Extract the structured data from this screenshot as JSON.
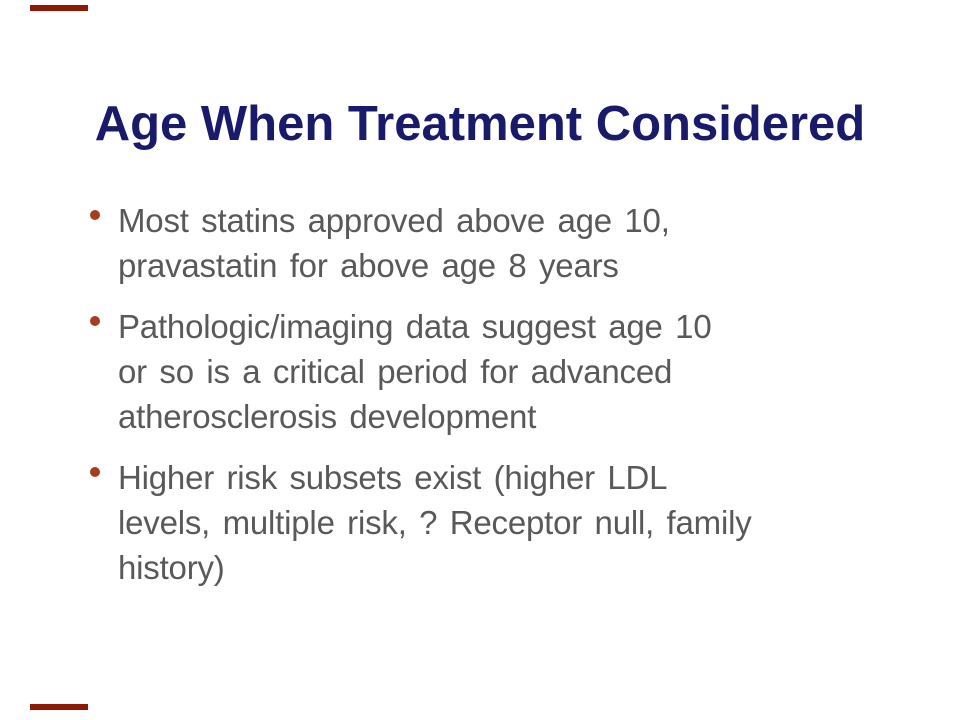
{
  "slide": {
    "title": "Age When Treatment Considered",
    "bullets": [
      {
        "text": "Most statins approved above age 10, pravastatin for above age 8 years",
        "lines": [
          "Most statins approved above age 10,",
          "pravastatin for above age 8 years"
        ]
      },
      {
        "text": "Pathologic/imaging data suggest age 10 or so is a critical period for advanced atherosclerosis development",
        "lines": [
          "Pathologic/imaging data suggest age 10",
          "or so is a critical period for advanced",
          "atherosclerosis development"
        ]
      },
      {
        "text": "Higher risk subsets exist (higher LDL levels, multiple risk, ? Receptor null, family history)",
        "lines": [
          "Higher risk subsets exist (higher LDL",
          "levels, multiple risk, ? Receptor null, family",
          "history)"
        ]
      }
    ],
    "colors": {
      "background": "#FFFFFF",
      "title_text": "#1A1A6B",
      "body_text": "#595959",
      "bullet_dot": "#A63E1E",
      "edge_mark": "#8E1A06"
    }
  }
}
